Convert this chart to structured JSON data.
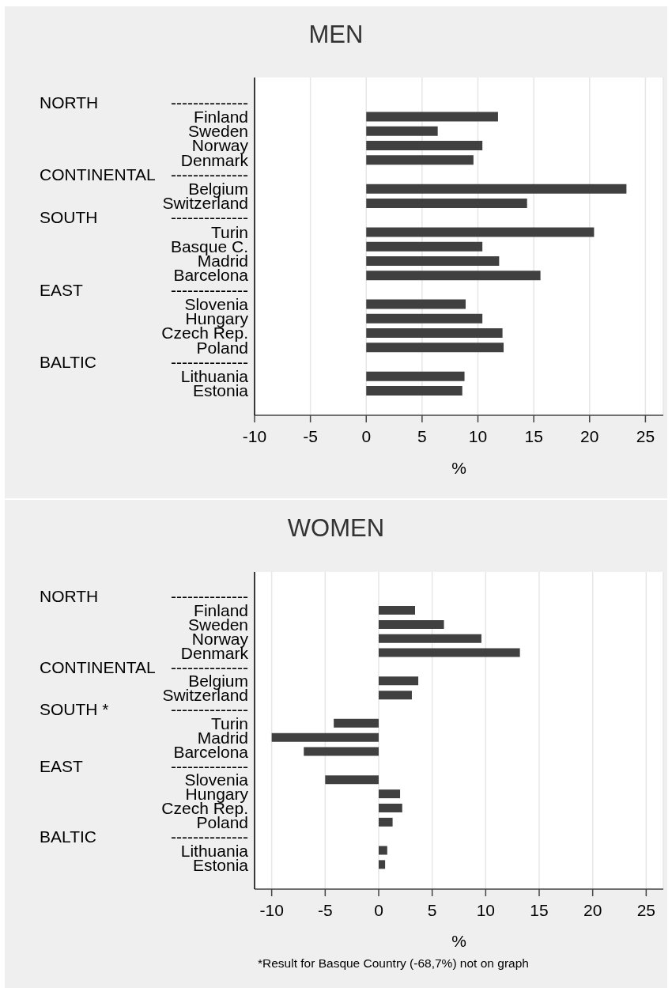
{
  "chart_data": [
    {
      "type": "bar",
      "orientation": "horizontal",
      "title": "MEN",
      "xlabel": "%",
      "categories": [
        "--------------",
        "Finland",
        "Sweden",
        "Norway",
        "Denmark",
        "--------------",
        "Belgium",
        "Switzerland",
        "--------------",
        "Turin",
        "Basque C.",
        "Madrid",
        "Barcelona",
        "--------------",
        "Slovenia",
        "Hungary",
        "Czech Rep.",
        "Poland",
        "--------------",
        "Lithuania",
        "Estonia"
      ],
      "values": [
        null,
        11.8,
        6.4,
        10.4,
        9.6,
        null,
        23.3,
        14.4,
        null,
        20.4,
        10.4,
        11.9,
        15.6,
        null,
        8.9,
        10.4,
        12.2,
        12.3,
        null,
        8.8,
        8.6
      ],
      "color": "#404040",
      "xlim": [
        -10,
        26.6
      ],
      "xticks": [
        -10,
        -5,
        0,
        5,
        10,
        15,
        20,
        25
      ],
      "grid": "x",
      "annotations": [
        "NORTH",
        "CONTINENTAL",
        "SOUTH",
        "EAST",
        "BALTIC"
      ]
    },
    {
      "type": "bar",
      "orientation": "horizontal",
      "title": "WOMEN",
      "xlabel": "%",
      "categories": [
        "--------------",
        "Finland",
        "Sweden",
        "Norway",
        "Denmark",
        "--------------",
        "Belgium",
        "Switzerland",
        "--------------",
        "Turin",
        "Madrid",
        "Barcelona",
        "--------------",
        "Slovenia",
        "Hungary",
        "Czech Rep.",
        "Poland",
        "--------------",
        "Lithuania",
        "Estonia"
      ],
      "values": [
        null,
        3.4,
        6.1,
        9.6,
        13.2,
        null,
        3.7,
        3.1,
        null,
        -4.2,
        -10.0,
        -7.0,
        null,
        -5.0,
        2.0,
        2.2,
        1.3,
        null,
        0.8,
        0.6
      ],
      "color": "#404040",
      "xlim": [
        -11.6,
        26.6
      ],
      "xticks": [
        -10,
        -5,
        0,
        5,
        10,
        15,
        20,
        25
      ],
      "grid": "x",
      "annotations": [
        "NORTH",
        "CONTINENTAL",
        "SOUTH *",
        "EAST",
        "BALTIC",
        "*Result for Basque Country (-68,7%) not on graph"
      ]
    }
  ]
}
